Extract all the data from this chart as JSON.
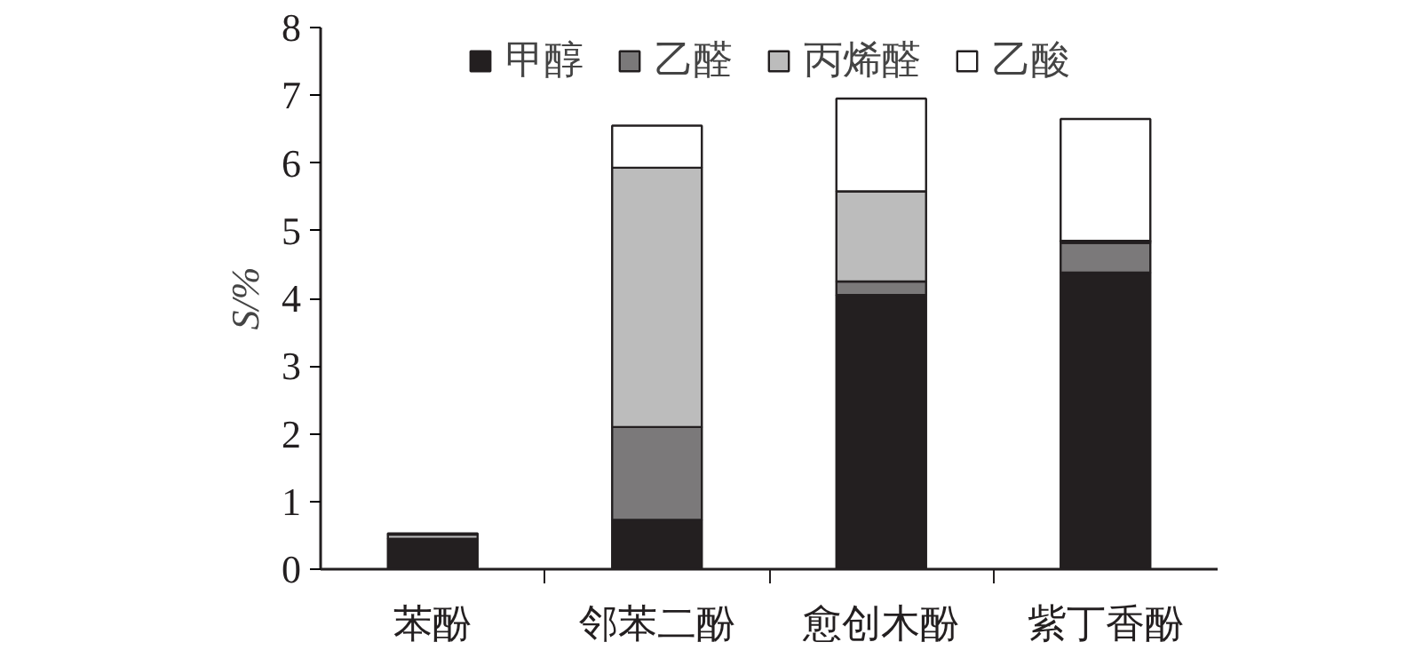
{
  "chart_data": {
    "type": "bar",
    "stacked": true,
    "ylabel": "S/%",
    "categories": [
      "苯酚",
      "邻苯二酚",
      "愈创木酚",
      "紫丁香酚"
    ],
    "series": [
      {
        "name": "甲醇",
        "color": "#231f20",
        "values": [
          0.45,
          0.73,
          4.05,
          4.38
        ]
      },
      {
        "name": "乙醛",
        "color": "#7b797a",
        "values": [
          0,
          1.37,
          0.2,
          0.44
        ]
      },
      {
        "name": "丙烯醛",
        "color": "#bcbcbc",
        "values": [
          0.06,
          3.83,
          1.33,
          0.03
        ]
      },
      {
        "name": "乙酸",
        "color": "#ffffff",
        "values": [
          0.02,
          0.62,
          1.37,
          1.8
        ]
      }
    ],
    "ylim": [
      0,
      8
    ],
    "yticks": [
      0,
      1,
      2,
      3,
      4,
      5,
      6,
      7,
      8
    ],
    "grid": false,
    "legend": "top"
  }
}
